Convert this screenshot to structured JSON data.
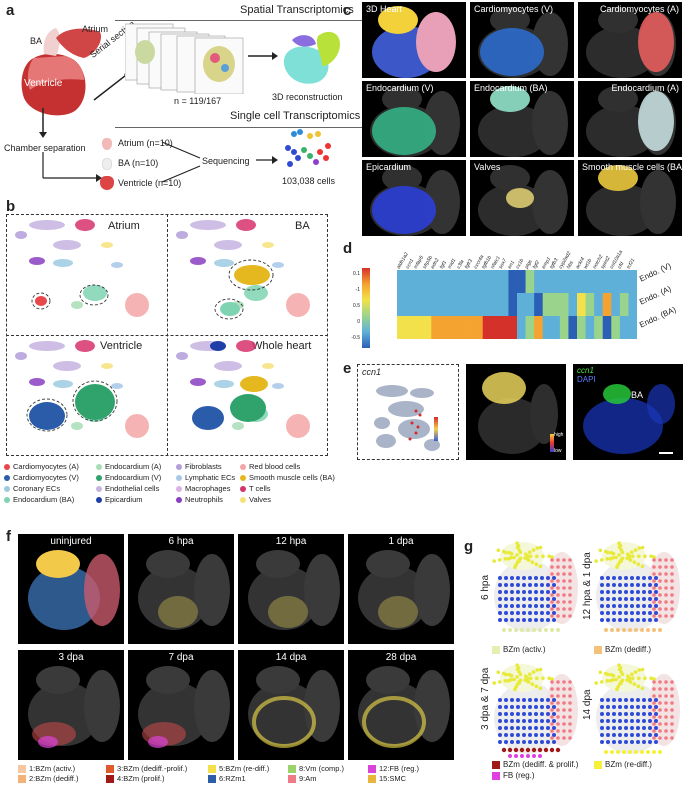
{
  "panels": {
    "a": "a",
    "b": "b",
    "c": "c",
    "d": "d",
    "e": "e",
    "f": "f",
    "g": "g"
  },
  "panel_a": {
    "spatial_title": "Spatial Transcriptomics",
    "single_title": "Single cell Transcriptomics",
    "heart_labels": {
      "ba": "BA",
      "atrium": "Atrium",
      "ventricle": "Ventricle"
    },
    "serial_section": "Serial section",
    "n_sections": "n = 119/167",
    "reconstruction": "3D reconstruction",
    "chamber_sep": "Chamber separation",
    "samples": [
      "Atrium (n=10)",
      "BA (n=10)",
      "Ventricle (n=10)"
    ],
    "sequencing": "Sequencing",
    "cells": "103,038 cells"
  },
  "panel_b": {
    "titles": [
      "Atrium",
      "BA",
      "Ventricle",
      "Whole heart"
    ],
    "legend": [
      {
        "label": "Cardiomyocytes (A)",
        "color": "#e8474b"
      },
      {
        "label": "Cardiomyocytes (V)",
        "color": "#2a5caa"
      },
      {
        "label": "Coronary ECs",
        "color": "#9ecae1"
      },
      {
        "label": "Endocardium (BA)",
        "color": "#7ed3b2"
      },
      {
        "label": "Endocardium (A)",
        "color": "#a8ddb5"
      },
      {
        "label": "Endocardium (V)",
        "color": "#2fa36b"
      },
      {
        "label": "Endothelial cells",
        "color": "#c6b3e0"
      },
      {
        "label": "Epicardium",
        "color": "#1f3fa8"
      },
      {
        "label": "Fibroblasts",
        "color": "#b39ddb"
      },
      {
        "label": "Lymphatic ECs",
        "color": "#a7c7e7"
      },
      {
        "label": "Macrophages",
        "color": "#d9b3e6"
      },
      {
        "label": "Neutrophils",
        "color": "#8a3ec2"
      },
      {
        "label": "Red blood cells",
        "color": "#f4a6a6"
      },
      {
        "label": "Smooth muscle cells (BA)",
        "color": "#e6b81f"
      },
      {
        "label": "T cells",
        "color": "#d6336c"
      },
      {
        "label": "Valves",
        "color": "#f7e27a"
      }
    ]
  },
  "panel_c": {
    "titles": [
      "3D Heart",
      "Cardiomyocytes (V)",
      "Cardiomyocytes (A)",
      "Endocardium (V)",
      "Endocardium (BA)",
      "Endocardium (A)",
      "Epicardium",
      "Valves",
      "Smooth muscle cells (BA)"
    ],
    "colors": [
      "#f2d13a",
      "#2d6fd6",
      "#f06060",
      "#35b98a",
      "#8fe0c6",
      "#cfe8e8",
      "#2b3fe0",
      "#f3e07a",
      "#e9c53a"
    ]
  },
  "panel_d": {
    "genes": [
      "aldh1a2",
      "ccn1",
      "mfap5",
      "sfrp5b",
      "edn2",
      "fgf1",
      "mid1",
      "c3la",
      "fgfr3",
      "cxcr4a",
      "tgfb1b",
      "nfatc1",
      "sox7",
      "en1",
      "cx1b",
      "ptgs",
      "fgf2",
      "emp1",
      "tgfb3",
      "cyp2ad2",
      "hbs",
      "ackr4",
      "wt1b",
      "notch2",
      "spint2",
      "col10a1a",
      "cfd",
      "tcf21"
    ],
    "rows": [
      "Endo. (V)",
      "Endo. (A)",
      "Endo. (BA)"
    ],
    "scale_ticks": [
      "0.1",
      "-1",
      "0.5",
      "0",
      "-0.5"
    ]
  },
  "panel_e": {
    "gene": "ccn1",
    "scale": [
      "high",
      "low"
    ],
    "stain_gene": "ccn1",
    "stain_dapi": "DAPI",
    "ba": "BA"
  },
  "panel_f": {
    "timepoints": [
      "uninjured",
      "6 hpa",
      "12 hpa",
      "1 dpa",
      "3 dpa",
      "7 dpa",
      "14 dpa",
      "28 dpa"
    ],
    "legend": [
      {
        "label": "1:BZm (activ.)",
        "color": "#f6c7a2"
      },
      {
        "label": "2:BZm (dediff.)",
        "color": "#f2b27a"
      },
      {
        "label": "3:BZm (dediff.-prolif.)",
        "color": "#e05a2b"
      },
      {
        "label": "4:BZm (prolif.)",
        "color": "#a01818"
      },
      {
        "label": "5:BZm (re-diff.)",
        "color": "#f4e04a"
      },
      {
        "label": "6:RZm1",
        "color": "#2e5da8"
      },
      {
        "label": "8:Vm (comp.)",
        "color": "#9bd36a"
      },
      {
        "label": "9:Am",
        "color": "#f07b86"
      },
      {
        "label": "12:FB (reg.)",
        "color": "#d945d9"
      },
      {
        "label": "15:SMC",
        "color": "#e8b63a"
      }
    ]
  },
  "panel_g": {
    "labels": [
      "6 hpa",
      "12 hpa & 1 dpa",
      "3 dpa & 7 dpa",
      "14 dpa"
    ],
    "legend_a": "BZm (activ.)",
    "legend_b": "BZm (dediff.)",
    "legend_c1": "BZm (dediff. & prolif.)",
    "legend_c2": "FB (reg.)",
    "legend_d": "BZm (re-diff.)"
  }
}
